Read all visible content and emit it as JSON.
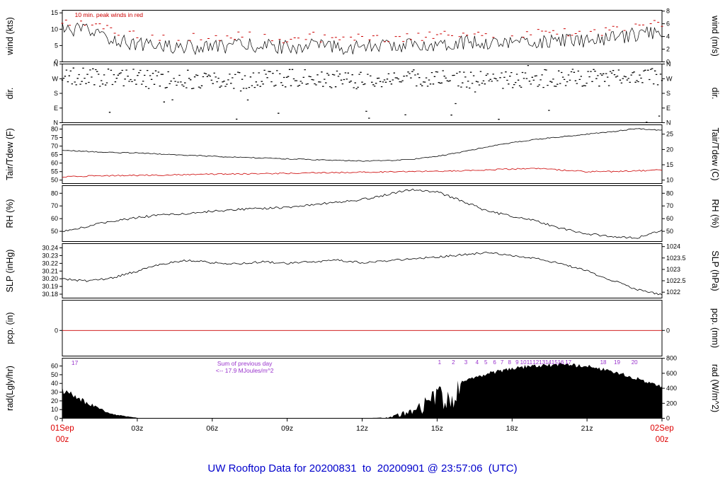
{
  "title": {
    "text": "UW Rooftop Data for 20200831  to  20200901 @ 23:57:06  (UTC)",
    "color": "#0000cc"
  },
  "colors": {
    "line": "#000000",
    "red": "#cc0000",
    "purple": "#9933cc",
    "background": "#ffffff"
  },
  "annotations": {
    "peak_note": {
      "text": "10 min. peak winds in red",
      "color": "#cc0000"
    },
    "prev_day": {
      "label": "17",
      "color": "#9933cc"
    },
    "sum_note": {
      "line1": "Sum of previous day",
      "line2": "<--  17.9 MJoules/m^2",
      "color": "#9933cc"
    }
  },
  "x_axis": {
    "range_hours": [
      0,
      24
    ],
    "ticks": [
      {
        "hour": 3,
        "label": "03z"
      },
      {
        "hour": 6,
        "label": "06z"
      },
      {
        "hour": 9,
        "label": "09z"
      },
      {
        "hour": 12,
        "label": "12z"
      },
      {
        "hour": 15,
        "label": "15z"
      },
      {
        "hour": 18,
        "label": "18z"
      },
      {
        "hour": 21,
        "label": "21z"
      }
    ],
    "start": {
      "line1": "01Sep",
      "line2": "00z"
    },
    "end": {
      "line1": "02Sep",
      "line2": "00z"
    },
    "color": "#dd0000"
  },
  "chart_data": [
    {
      "id": "wind",
      "type": "line",
      "ylabel_left": "wind (kts)",
      "ylabel_right": "wind (m/s)",
      "ylim": [
        0,
        15.8
      ],
      "left_ticks": [
        {
          "v": 0,
          "label": "0"
        },
        {
          "v": 5,
          "label": "5"
        },
        {
          "v": 10,
          "label": "10"
        },
        {
          "v": 15,
          "label": "15"
        }
      ],
      "right_ticks": [
        {
          "pos": 0,
          "label": "0"
        },
        {
          "pos": 3.89,
          "label": "2"
        },
        {
          "pos": 7.78,
          "label": "4"
        },
        {
          "pos": 11.66,
          "label": "6"
        },
        {
          "pos": 15.55,
          "label": "8"
        }
      ],
      "noise_amp": 2.2,
      "series": [
        {
          "name": "wind_speed_kts",
          "color": "#000000",
          "hourly": [
            10,
            9.5,
            7,
            5.5,
            5,
            4.5,
            4.5,
            5,
            5,
            4.5,
            5,
            4.5,
            4.5,
            5,
            5,
            5.5,
            6,
            6,
            6,
            6,
            6.5,
            6.5,
            7,
            8.5,
            9.5
          ]
        }
      ],
      "peaks": {
        "name": "10min_peak_wind_kts",
        "color": "#cc0000",
        "offset_kts": 2.5
      }
    },
    {
      "id": "dir",
      "type": "scatter",
      "ylabel_left": "dir.",
      "ylabel_right": "dir.",
      "ylim": [
        0,
        360
      ],
      "left_ticks": [
        {
          "v": 360,
          "label": "N"
        },
        {
          "v": 270,
          "label": "W"
        },
        {
          "v": 180,
          "label": "S"
        },
        {
          "v": 90,
          "label": "E"
        },
        {
          "v": 0,
          "label": "N"
        }
      ],
      "right_ticks": [
        {
          "pos": 360,
          "label": "N"
        },
        {
          "pos": 270,
          "label": "W"
        },
        {
          "pos": 180,
          "label": "S"
        },
        {
          "pos": 90,
          "label": "E"
        },
        {
          "pos": 0,
          "label": "N"
        }
      ],
      "scatter_amp": 55,
      "outlier_frac": 0.06,
      "series": [
        {
          "name": "wind_direction_deg",
          "color": "#000000",
          "hourly": [
            285,
            280,
            276,
            272,
            268,
            262,
            258,
            262,
            268,
            272,
            270,
            266,
            262,
            268,
            275,
            272,
            264,
            258,
            264,
            270,
            274,
            280,
            276,
            282,
            286
          ]
        }
      ]
    },
    {
      "id": "temp",
      "type": "line",
      "ylabel_left": "Tair/Tdew (F)",
      "ylabel_right": "Tair/Tdew (C)",
      "ylim": [
        48,
        82.5
      ],
      "left_ticks": [
        {
          "v": 50,
          "label": "50"
        },
        {
          "v": 55,
          "label": "55"
        },
        {
          "v": 60,
          "label": "60"
        },
        {
          "v": 65,
          "label": "65"
        },
        {
          "v": 70,
          "label": "70"
        },
        {
          "v": 75,
          "label": "75"
        },
        {
          "v": 80,
          "label": "80"
        }
      ],
      "right_ticks": [
        {
          "pos": 50,
          "label": "10"
        },
        {
          "pos": 59,
          "label": "15"
        },
        {
          "pos": 68,
          "label": "20"
        },
        {
          "pos": 77,
          "label": "25"
        }
      ],
      "noise_amp": 0.3,
      "series": [
        {
          "name": "Tair_F",
          "color": "#000000",
          "noise_amp": 0.3,
          "hourly": [
            67.5,
            66.8,
            66.2,
            66,
            65.2,
            64.6,
            64,
            63.5,
            63,
            62.5,
            62,
            61.6,
            61.2,
            61.5,
            62.2,
            64,
            66.5,
            69.5,
            72,
            74,
            75.5,
            77,
            78.5,
            80.3,
            79.3
          ]
        },
        {
          "name": "Tdew_F",
          "color": "#cc0000",
          "noise_amp": 0.4,
          "hourly": [
            52,
            52.4,
            52.6,
            52.8,
            53,
            53.2,
            53.4,
            53.6,
            53.8,
            54,
            54.2,
            54.4,
            54.6,
            54.8,
            55,
            55.2,
            55.5,
            56,
            56.5,
            57,
            55.8,
            55,
            55,
            55.4,
            56
          ]
        }
      ]
    },
    {
      "id": "rh",
      "type": "line",
      "ylabel_left": "RH (%)",
      "ylabel_right": "RH (%)",
      "ylim": [
        42,
        86
      ],
      "left_ticks": [
        {
          "v": 50,
          "label": "50"
        },
        {
          "v": 60,
          "label": "60"
        },
        {
          "v": 70,
          "label": "70"
        },
        {
          "v": 80,
          "label": "80"
        }
      ],
      "right_ticks": [
        {
          "pos": 50,
          "label": "50"
        },
        {
          "pos": 60,
          "label": "60"
        },
        {
          "pos": 70,
          "label": "70"
        },
        {
          "pos": 80,
          "label": "80"
        }
      ],
      "noise_amp": 0.9,
      "series": [
        {
          "name": "RH_pct",
          "color": "#000000",
          "hourly": [
            50,
            54,
            58,
            61,
            63,
            64,
            66,
            67,
            68,
            69,
            71,
            73,
            75,
            79,
            83,
            81,
            74,
            66,
            62,
            58,
            52,
            48,
            46,
            45,
            51
          ]
        }
      ]
    },
    {
      "id": "slp",
      "type": "line",
      "ylabel_left": "SLP (inHg)",
      "ylabel_right": "SLP (hPa)",
      "ylim": [
        30.175,
        30.2455
      ],
      "left_ticks": [
        {
          "v": 30.18,
          "label": "30.18"
        },
        {
          "v": 30.19,
          "label": "30.19"
        },
        {
          "v": 30.2,
          "label": "30.20"
        },
        {
          "v": 30.21,
          "label": "30.21"
        },
        {
          "v": 30.22,
          "label": "30.22"
        },
        {
          "v": 30.23,
          "label": "30.23"
        },
        {
          "v": 30.24,
          "label": "30.24"
        }
      ],
      "right_ticks": [
        {
          "pos": 30.1826,
          "label": "1022"
        },
        {
          "pos": 30.1974,
          "label": "1022.5"
        },
        {
          "pos": 30.2121,
          "label": "1023"
        },
        {
          "pos": 30.2269,
          "label": "1023.5"
        },
        {
          "pos": 30.2417,
          "label": "1024"
        }
      ],
      "noise_amp": 0.0013,
      "series": [
        {
          "name": "SLP_inHg",
          "color": "#000000",
          "hourly": [
            30.2,
            30.197,
            30.201,
            30.21,
            30.219,
            30.224,
            30.221,
            30.219,
            30.222,
            30.22,
            30.222,
            30.224,
            30.221,
            30.223,
            30.226,
            30.228,
            30.231,
            30.234,
            30.23,
            30.226,
            30.219,
            30.21,
            30.198,
            30.186,
            30.179
          ]
        }
      ]
    },
    {
      "id": "pcp",
      "type": "line",
      "ylabel_left": "pcp. (in)",
      "ylabel_right": "pcp. (mm)",
      "ylim": [
        -0.55,
        0.65
      ],
      "left_ticks": [
        {
          "v": 0,
          "label": "0"
        }
      ],
      "right_ticks": [
        {
          "pos": 0,
          "label": "0"
        }
      ],
      "series": [
        {
          "name": "precip_in",
          "color": "#cc0000",
          "constant": 0
        }
      ]
    },
    {
      "id": "rad",
      "type": "area",
      "ylabel_left": "rad(Lgly/hr)",
      "ylabel_right": "rad (W/m^2)",
      "ylim": [
        0,
        69
      ],
      "left_ticks": [
        {
          "v": 0,
          "label": "0"
        },
        {
          "v": 10,
          "label": "10"
        },
        {
          "v": 20,
          "label": "20"
        },
        {
          "v": 30,
          "label": "30"
        },
        {
          "v": 40,
          "label": "40"
        },
        {
          "v": 50,
          "label": "50"
        },
        {
          "v": 60,
          "label": "60"
        }
      ],
      "right_ticks": [
        {
          "pos": 0,
          "label": "0"
        },
        {
          "pos": 17.2,
          "label": "200"
        },
        {
          "pos": 34.4,
          "label": "400"
        },
        {
          "pos": 51.6,
          "label": "600"
        },
        {
          "pos": 68.8,
          "label": "800"
        }
      ],
      "sum_note_x_hour": 7.3,
      "series": [
        {
          "name": "solar_rad_Lgly_hr",
          "color": "#000000",
          "hourly": [
            35,
            18,
            5,
            0.5,
            0,
            0,
            0,
            0,
            0,
            0,
            0,
            0,
            0,
            1,
            10,
            30,
            44,
            54,
            60,
            64,
            65,
            63,
            57,
            48,
            38
          ]
        }
      ],
      "purple_marks": [
        {
          "t": 15.1,
          "label": "1"
        },
        {
          "t": 15.65,
          "label": "2"
        },
        {
          "t": 16.15,
          "label": "3"
        },
        {
          "t": 16.6,
          "label": "4"
        },
        {
          "t": 16.95,
          "label": "5"
        },
        {
          "t": 17.3,
          "label": "6"
        },
        {
          "t": 17.6,
          "label": "7"
        },
        {
          "t": 17.9,
          "label": "8"
        },
        {
          "t": 18.2,
          "label": "9"
        },
        {
          "t": 18.45,
          "label": "10"
        },
        {
          "t": 18.7,
          "label": "11"
        },
        {
          "t": 18.95,
          "label": "12"
        },
        {
          "t": 19.2,
          "label": "13"
        },
        {
          "t": 19.45,
          "label": "14"
        },
        {
          "t": 19.7,
          "label": "15"
        },
        {
          "t": 19.95,
          "label": "16"
        },
        {
          "t": 20.25,
          "label": "17"
        },
        {
          "t": 21.65,
          "label": "18"
        },
        {
          "t": 22.2,
          "label": "19"
        },
        {
          "t": 22.9,
          "label": "20"
        }
      ]
    }
  ]
}
